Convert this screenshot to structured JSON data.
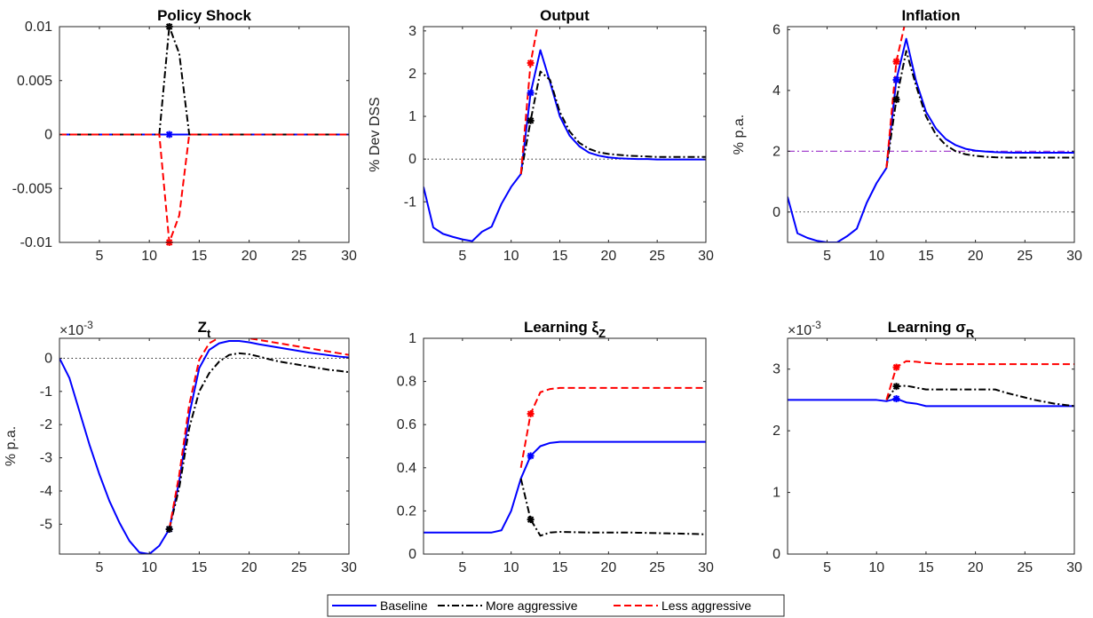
{
  "legend": {
    "entries": [
      {
        "label": "Baseline",
        "color": "#0000ff",
        "style": "solid"
      },
      {
        "label": "More aggressive",
        "color": "#000000",
        "style": "dashdot"
      },
      {
        "label": "Less aggressive",
        "color": "#ff0000",
        "style": "dashed"
      }
    ]
  },
  "chart_data": [
    {
      "type": "line",
      "title": "Policy Shock",
      "ylabel": "",
      "xlim": [
        1,
        30
      ],
      "ylim": [
        -0.01,
        0.01
      ],
      "xticks": [
        5,
        10,
        15,
        20,
        25,
        30
      ],
      "yticks": [
        -0.01,
        -0.005,
        0,
        0.005,
        0.01
      ],
      "ytick_labels": [
        "-0.01",
        "-0.005",
        "0",
        "0.005",
        "0.01"
      ],
      "exponent": "",
      "hlines": [],
      "series": [
        {
          "color": "#0000ff",
          "style": "solid",
          "x": [
            1,
            30
          ],
          "y": [
            0,
            0
          ],
          "marker": [
            12,
            0
          ]
        },
        {
          "color": "#000000",
          "style": "dashdot",
          "x": [
            1,
            11,
            12,
            13,
            14,
            30
          ],
          "y": [
            0,
            0,
            0.01,
            0.0075,
            0,
            0
          ],
          "marker": [
            12,
            0.01
          ]
        },
        {
          "color": "#ff0000",
          "style": "dashed",
          "x": [
            1,
            11,
            12,
            13,
            14,
            30
          ],
          "y": [
            0,
            0,
            -0.01,
            -0.0075,
            0,
            0
          ],
          "marker": [
            12,
            -0.01
          ]
        }
      ]
    },
    {
      "type": "line",
      "title": "Output",
      "ylabel": "% Dev DSS",
      "xlim": [
        1,
        30
      ],
      "ylim": [
        -1.95,
        3.1
      ],
      "xticks": [
        5,
        10,
        15,
        20,
        25,
        30
      ],
      "yticks": [
        -1,
        0,
        1,
        2,
        3
      ],
      "ytick_labels": [
        "-1",
        "0",
        "1",
        "2",
        "3"
      ],
      "exponent": "",
      "hlines": [
        {
          "y": 0,
          "color": "#000000",
          "style": "dotted"
        }
      ],
      "series": [
        {
          "color": "#0000ff",
          "style": "solid",
          "x": [
            1,
            2,
            3,
            4,
            5,
            6,
            7,
            8,
            9,
            10,
            11,
            12,
            13,
            14,
            15,
            16,
            17,
            18,
            19,
            20,
            21,
            22,
            23,
            24,
            25,
            26,
            27,
            28,
            29,
            30
          ],
          "y": [
            -0.65,
            -1.6,
            -1.75,
            -1.82,
            -1.88,
            -1.92,
            -1.7,
            -1.58,
            -1.05,
            -0.65,
            -0.35,
            1.55,
            2.55,
            1.8,
            1.0,
            0.55,
            0.3,
            0.15,
            0.08,
            0.04,
            0.02,
            0.01,
            0.0,
            0.0,
            -0.01,
            -0.01,
            -0.01,
            -0.01,
            -0.01,
            -0.01
          ],
          "marker": [
            12,
            1.55
          ]
        },
        {
          "color": "#000000",
          "style": "dashdot",
          "x": [
            11,
            12,
            13,
            14,
            15,
            16,
            17,
            18,
            19,
            20,
            21,
            22,
            23,
            24,
            25,
            26,
            27,
            28,
            29,
            30
          ],
          "y": [
            -0.35,
            0.9,
            2.05,
            1.85,
            1.1,
            0.65,
            0.38,
            0.24,
            0.16,
            0.12,
            0.1,
            0.08,
            0.07,
            0.06,
            0.05,
            0.05,
            0.05,
            0.05,
            0.05,
            0.05
          ],
          "marker": [
            12,
            0.9
          ]
        },
        {
          "color": "#ff0000",
          "style": "dashed",
          "x": [
            11,
            12,
            12.7
          ],
          "y": [
            -0.35,
            2.25,
            3.1
          ],
          "marker": [
            12,
            2.25
          ]
        }
      ]
    },
    {
      "type": "line",
      "title": "Inflation",
      "ylabel": "% p.a.",
      "xlim": [
        1,
        30
      ],
      "ylim": [
        -1.0,
        6.1
      ],
      "xticks": [
        5,
        10,
        15,
        20,
        25,
        30
      ],
      "yticks": [
        0,
        2,
        4,
        6
      ],
      "ytick_labels": [
        "0",
        "2",
        "4",
        "6"
      ],
      "exponent": "",
      "hlines": [
        {
          "y": 0,
          "color": "#000000",
          "style": "dotted"
        },
        {
          "y": 2,
          "color": "#9b30c9",
          "style": "dashdot"
        }
      ],
      "series": [
        {
          "color": "#0000ff",
          "style": "solid",
          "x": [
            1,
            2,
            3,
            4,
            5,
            6,
            7,
            8,
            9,
            10,
            11,
            12,
            13,
            14,
            15,
            16,
            17,
            18,
            19,
            20,
            21,
            22,
            23,
            24,
            25,
            26,
            27,
            28,
            29,
            30
          ],
          "y": [
            0.5,
            -0.7,
            -0.85,
            -0.95,
            -1.0,
            -1.0,
            -0.8,
            -0.55,
            0.3,
            0.95,
            1.45,
            4.35,
            5.7,
            4.3,
            3.3,
            2.75,
            2.4,
            2.2,
            2.08,
            2.02,
            1.99,
            1.97,
            1.96,
            1.95,
            1.95,
            1.95,
            1.95,
            1.95,
            1.95,
            1.95
          ],
          "marker": [
            12,
            4.35
          ]
        },
        {
          "color": "#000000",
          "style": "dashdot",
          "x": [
            11,
            12,
            13,
            14,
            15,
            16,
            17,
            18,
            19,
            20,
            21,
            22,
            23,
            24,
            25,
            26,
            27,
            28,
            29,
            30
          ],
          "y": [
            1.45,
            3.7,
            5.3,
            4.15,
            3.15,
            2.55,
            2.2,
            2.0,
            1.9,
            1.85,
            1.82,
            1.8,
            1.79,
            1.79,
            1.79,
            1.79,
            1.79,
            1.79,
            1.79,
            1.79
          ],
          "marker": [
            12,
            3.7
          ]
        },
        {
          "color": "#ff0000",
          "style": "dashed",
          "x": [
            11,
            12,
            12.8
          ],
          "y": [
            1.45,
            4.95,
            6.1
          ],
          "marker": [
            12,
            4.95
          ]
        }
      ]
    },
    {
      "type": "line",
      "title": "Z",
      "title_sub": "t",
      "ylabel": "% p.a.",
      "xlim": [
        1,
        30
      ],
      "ylim": [
        -5.9,
        0.6
      ],
      "xticks": [
        5,
        10,
        15,
        20,
        25,
        30
      ],
      "yticks": [
        -5,
        -4,
        -3,
        -2,
        -1,
        0
      ],
      "ytick_labels": [
        "-5",
        "-4",
        "-3",
        "-2",
        "-1",
        "0"
      ],
      "exponent": "×10",
      "exponent_power": "-3",
      "hlines": [
        {
          "y": 0,
          "color": "#000000",
          "style": "dotted"
        }
      ],
      "series": [
        {
          "color": "#0000ff",
          "style": "solid",
          "x": [
            1,
            2,
            3,
            4,
            5,
            6,
            7,
            8,
            9,
            10,
            11,
            12,
            13,
            14,
            15,
            16,
            17,
            18,
            19,
            20,
            21,
            22,
            23,
            24,
            25,
            26,
            27,
            28,
            29,
            30
          ],
          "y": [
            0,
            -0.6,
            -1.6,
            -2.6,
            -3.5,
            -4.3,
            -4.95,
            -5.5,
            -5.85,
            -5.9,
            -5.65,
            -5.15,
            -3.7,
            -1.7,
            -0.3,
            0.25,
            0.45,
            0.52,
            0.52,
            0.48,
            0.42,
            0.37,
            0.32,
            0.27,
            0.22,
            0.17,
            0.13,
            0.09,
            0.05,
            0.02
          ],
          "marker": [
            12,
            -5.15
          ]
        },
        {
          "color": "#000000",
          "style": "dashdot",
          "x": [
            12,
            13,
            14,
            15,
            16,
            17,
            18,
            19,
            20,
            21,
            22,
            23,
            24,
            25,
            26,
            27,
            28,
            29,
            30
          ],
          "y": [
            -5.15,
            -3.9,
            -2.1,
            -1.0,
            -0.45,
            -0.1,
            0.1,
            0.15,
            0.12,
            0.05,
            -0.03,
            -0.1,
            -0.15,
            -0.2,
            -0.25,
            -0.3,
            -0.35,
            -0.38,
            -0.42
          ],
          "marker": [
            12,
            -5.15
          ]
        },
        {
          "color": "#ff0000",
          "style": "dashed",
          "x": [
            12,
            13,
            14,
            15,
            16,
            17,
            18,
            19,
            20,
            21,
            22,
            23,
            24,
            25,
            26,
            27,
            28,
            29,
            30
          ],
          "y": [
            -5.15,
            -3.5,
            -1.4,
            -0.05,
            0.45,
            0.62,
            0.66,
            0.65,
            0.6,
            0.55,
            0.5,
            0.45,
            0.4,
            0.35,
            0.3,
            0.25,
            0.2,
            0.15,
            0.1
          ],
          "marker": null
        }
      ]
    },
    {
      "type": "line",
      "title": "Learning ξ",
      "title_sub": "Z",
      "ylabel": "",
      "xlim": [
        1,
        30
      ],
      "ylim": [
        0,
        1
      ],
      "xticks": [
        5,
        10,
        15,
        20,
        25,
        30
      ],
      "yticks": [
        0,
        0.2,
        0.4,
        0.6,
        0.8,
        1
      ],
      "ytick_labels": [
        "0",
        "0.2",
        "0.4",
        "0.6",
        "0.8",
        "1"
      ],
      "exponent": "",
      "hlines": [],
      "series": [
        {
          "color": "#0000ff",
          "style": "solid",
          "x": [
            1,
            2,
            3,
            4,
            5,
            6,
            7,
            8,
            9,
            10,
            11,
            12,
            13,
            14,
            15,
            16,
            17,
            18,
            19,
            20,
            21,
            22,
            23,
            24,
            25,
            26,
            27,
            28,
            29,
            30
          ],
          "y": [
            0.1,
            0.1,
            0.1,
            0.1,
            0.1,
            0.1,
            0.1,
            0.1,
            0.11,
            0.2,
            0.35,
            0.455,
            0.5,
            0.515,
            0.52,
            0.52,
            0.52,
            0.52,
            0.52,
            0.52,
            0.52,
            0.52,
            0.52,
            0.52,
            0.52,
            0.52,
            0.52,
            0.52,
            0.52,
            0.52
          ],
          "marker": [
            12,
            0.455
          ]
        },
        {
          "color": "#000000",
          "style": "dashdot",
          "x": [
            11,
            12,
            13,
            14,
            15,
            16,
            17,
            18,
            19,
            20,
            21,
            22,
            23,
            24,
            25,
            26,
            27,
            28,
            29,
            30
          ],
          "y": [
            0.35,
            0.16,
            0.085,
            0.1,
            0.103,
            0.102,
            0.101,
            0.1,
            0.1,
            0.1,
            0.1,
            0.1,
            0.099,
            0.098,
            0.097,
            0.096,
            0.095,
            0.094,
            0.093,
            0.091
          ],
          "marker": [
            12,
            0.16
          ]
        },
        {
          "color": "#ff0000",
          "style": "dashed",
          "x": [
            11,
            12,
            13,
            14,
            15,
            16,
            17,
            18,
            19,
            20,
            21,
            22,
            23,
            24,
            25,
            26,
            27,
            28,
            29,
            30
          ],
          "y": [
            0.4,
            0.65,
            0.75,
            0.765,
            0.77,
            0.77,
            0.77,
            0.77,
            0.77,
            0.77,
            0.77,
            0.77,
            0.77,
            0.77,
            0.77,
            0.77,
            0.77,
            0.77,
            0.77,
            0.77
          ],
          "marker": [
            12,
            0.65
          ]
        }
      ]
    },
    {
      "type": "line",
      "title": "Learning σ",
      "title_sub": "R",
      "ylabel": "",
      "xlim": [
        1,
        30
      ],
      "ylim": [
        0,
        3.5
      ],
      "xticks": [
        5,
        10,
        15,
        20,
        25,
        30
      ],
      "yticks": [
        0,
        1,
        2,
        3
      ],
      "ytick_labels": [
        "0",
        "1",
        "2",
        "3"
      ],
      "exponent": "×10",
      "exponent_power": "-3",
      "hlines": [],
      "series": [
        {
          "color": "#0000ff",
          "style": "solid",
          "x": [
            1,
            10,
            11,
            12,
            13,
            14,
            15,
            20,
            25,
            30
          ],
          "y": [
            2.5,
            2.5,
            2.48,
            2.52,
            2.46,
            2.44,
            2.4,
            2.4,
            2.4,
            2.4
          ],
          "marker": [
            12,
            2.52
          ]
        },
        {
          "color": "#000000",
          "style": "dashdot",
          "x": [
            11,
            12,
            13,
            14,
            15,
            16,
            17,
            18,
            19,
            20,
            21,
            22,
            23,
            24,
            25,
            26,
            27,
            28,
            29,
            30
          ],
          "y": [
            2.5,
            2.72,
            2.73,
            2.7,
            2.67,
            2.67,
            2.67,
            2.67,
            2.67,
            2.67,
            2.67,
            2.67,
            2.62,
            2.58,
            2.54,
            2.5,
            2.47,
            2.44,
            2.42,
            2.4
          ],
          "marker": [
            12,
            2.72
          ]
        },
        {
          "color": "#ff0000",
          "style": "dashed",
          "x": [
            11,
            12,
            13,
            14,
            15,
            16,
            17,
            18,
            19,
            20,
            21,
            22,
            23,
            24,
            25,
            26,
            27,
            28,
            29,
            30
          ],
          "y": [
            2.5,
            3.03,
            3.13,
            3.12,
            3.1,
            3.09,
            3.08,
            3.08,
            3.08,
            3.08,
            3.08,
            3.08,
            3.08,
            3.08,
            3.08,
            3.08,
            3.08,
            3.08,
            3.08,
            3.08
          ],
          "marker": [
            12,
            3.03
          ]
        }
      ]
    }
  ]
}
